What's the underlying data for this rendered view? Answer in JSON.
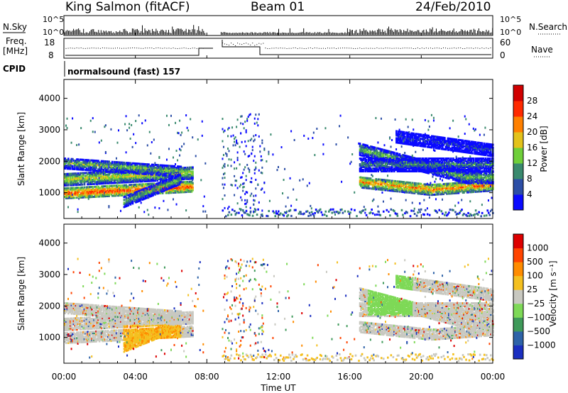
{
  "header": {
    "station": "King Salmon (fitACF)",
    "beam": "Beam 01",
    "date": "24/Feb/2010"
  },
  "panels": {
    "nsky": {
      "label": "N.Sky",
      "right_label": "N.Search",
      "ticks": [
        "10^5",
        "10^0"
      ]
    },
    "freq": {
      "label_top": "Freq.",
      "label_bottom": "[MHz]",
      "ticks": [
        "18",
        "8"
      ],
      "right_label": "Nave",
      "right_ticks": [
        "60",
        "0"
      ]
    },
    "cpid": {
      "label": "CPID",
      "mode": "normalsound (fast) 157"
    }
  },
  "chart_data": [
    {
      "type": "heatmap",
      "quantity": "Power",
      "ylabel": "Slant Range [km]",
      "ylim": [
        180,
        4600
      ],
      "yticks": [
        1000,
        2000,
        3000,
        4000
      ],
      "colorbar_label": "Power [dB]",
      "colorbar_ticks": [
        4,
        8,
        12,
        16,
        20,
        24,
        28
      ],
      "colors": [
        "#0a0aff",
        "#2c4ea6",
        "#3a8a6e",
        "#6fcf3a",
        "#e3c21b",
        "#ff8000",
        "#ff2a00",
        "#d00000"
      ],
      "data_gap_ut": [
        7.9,
        8.8
      ]
    },
    {
      "type": "heatmap",
      "quantity": "Velocity",
      "ylabel": "Slant Range [km]",
      "ylim": [
        180,
        4600
      ],
      "yticks": [
        1000,
        2000,
        3000,
        4000
      ],
      "colorbar_label": "Velocity [m s⁻¹]",
      "colorbar_ticks": [
        "1000",
        "500",
        "100",
        "25",
        "−25",
        "−100",
        "−500",
        "−1000"
      ],
      "colors": [
        "#1b2fc0",
        "#2e63a8",
        "#3f9a5a",
        "#7ed957",
        "#c8c8c0",
        "#f4c020",
        "#ff8c00",
        "#ff4400",
        "#dd0000"
      ],
      "data_gap_ut": [
        7.9,
        8.8
      ]
    }
  ],
  "xaxis": {
    "label": "Time UT",
    "ticks": [
      "00:00",
      "04:00",
      "08:00",
      "12:00",
      "16:00",
      "20:00",
      "00:00"
    ]
  }
}
